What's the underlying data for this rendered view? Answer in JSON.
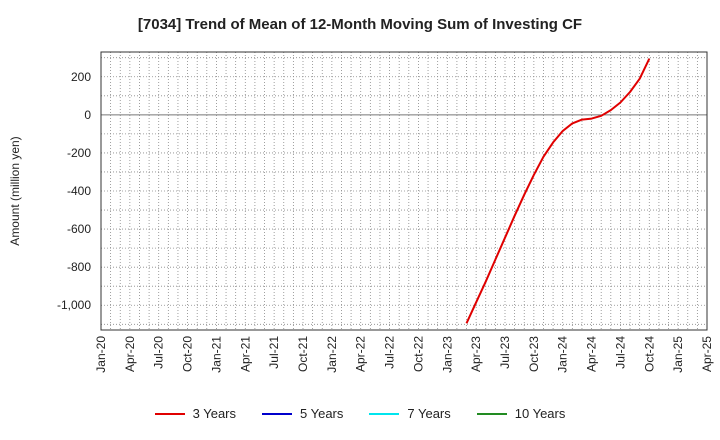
{
  "chart_data": {
    "type": "line",
    "title": "[7034]  Trend of Mean of 12-Month Moving Sum of Investing CF",
    "ylabel": "Amount (million yen)",
    "xlabel": "",
    "ylim": [
      -1130,
      330
    ],
    "yticks": [
      200,
      0,
      -200,
      -400,
      -600,
      -800,
      -1000
    ],
    "ytick_labels": [
      "200",
      "0",
      "-200",
      "-400",
      "-600",
      "-800",
      "-1,000"
    ],
    "xticks": [
      "Jan-20",
      "Apr-20",
      "Jul-20",
      "Oct-20",
      "Jan-21",
      "Apr-21",
      "Jul-21",
      "Oct-21",
      "Jan-22",
      "Apr-22",
      "Jul-22",
      "Oct-22",
      "Jan-23",
      "Apr-23",
      "Jul-23",
      "Oct-23",
      "Jan-24",
      "Apr-24",
      "Jul-24",
      "Oct-24",
      "Jan-25",
      "Apr-25"
    ],
    "grid": true,
    "legend_placement": "bottom",
    "series": [
      {
        "name": "3 Years",
        "color": "#e00000",
        "x": [
          "2023-03",
          "2023-04",
          "2023-05",
          "2023-06",
          "2023-07",
          "2023-08",
          "2023-09",
          "2023-10",
          "2023-11",
          "2023-12",
          "2024-01",
          "2024-02",
          "2024-03",
          "2024-04",
          "2024-05",
          "2024-06",
          "2024-07",
          "2024-08",
          "2024-09",
          "2024-10"
        ],
        "values": [
          -1095,
          -985,
          -875,
          -760,
          -645,
          -530,
          -420,
          -315,
          -220,
          -145,
          -85,
          -45,
          -25,
          -20,
          -5,
          25,
          65,
          120,
          190,
          295
        ]
      },
      {
        "name": "5 Years",
        "color": "#0000cc",
        "x": [],
        "values": []
      },
      {
        "name": "7 Years",
        "color": "#00e5ee",
        "x": [],
        "values": []
      },
      {
        "name": "10 Years",
        "color": "#228b22",
        "x": [],
        "values": []
      }
    ]
  }
}
